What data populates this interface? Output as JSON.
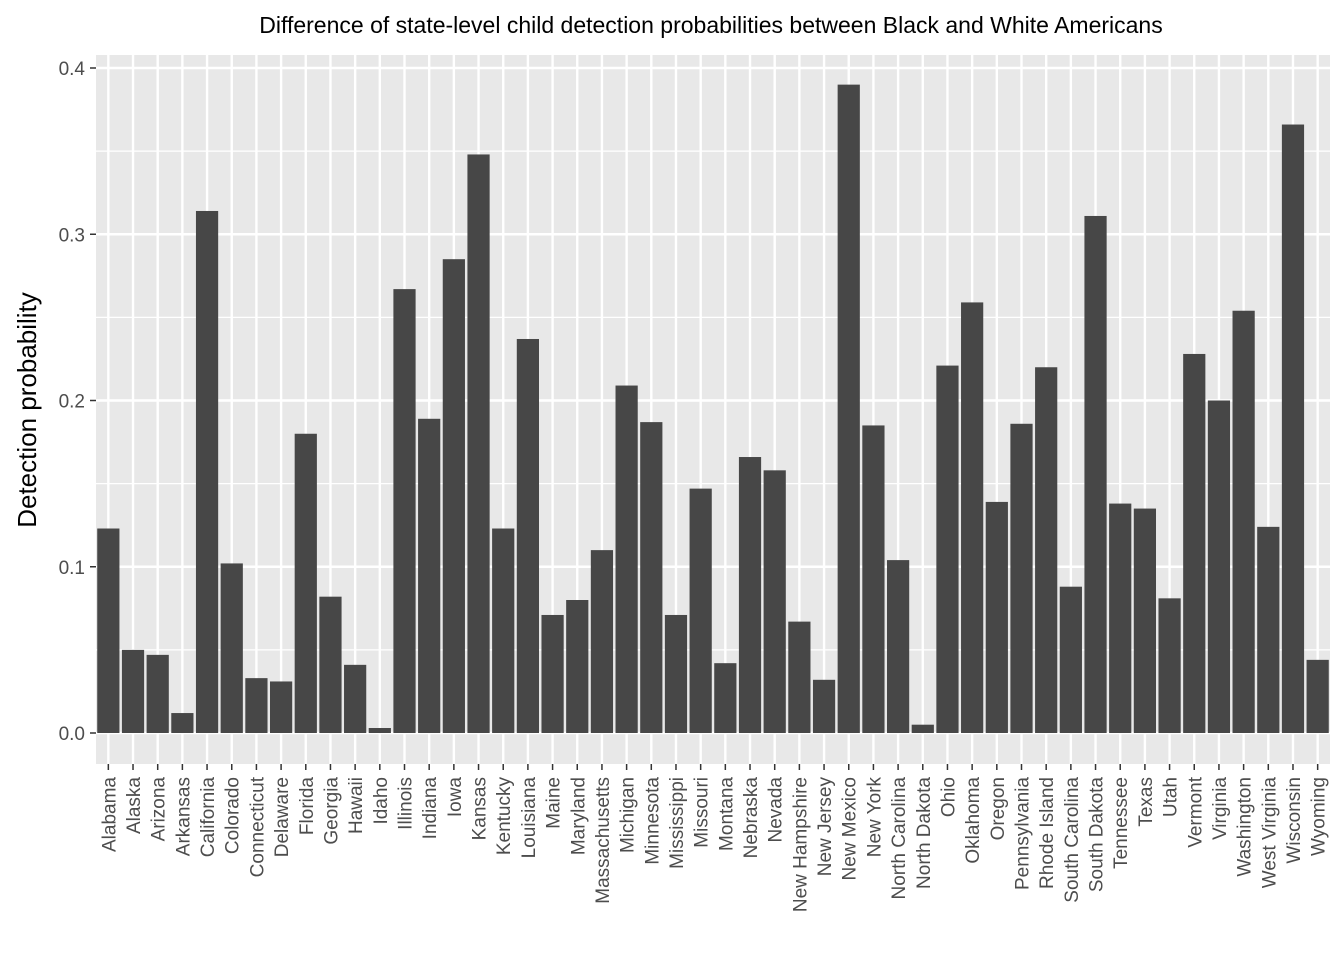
{
  "chart_data": {
    "type": "bar",
    "title": "Difference of state-level child detection probabilities between Black and White Americans",
    "xlabel": "",
    "ylabel": "Detection probability",
    "ylim": [
      -0.018,
      0.41
    ],
    "yticks": [
      "0.0",
      "0.1",
      "0.2",
      "0.3",
      "0.4"
    ],
    "grid": true,
    "legend": "none",
    "colors": {
      "bar": "#474747",
      "panel": "#e8e8e8",
      "grid": "#ffffff"
    },
    "categories": [
      "Alabama",
      "Alaska",
      "Arizona",
      "Arkansas",
      "California",
      "Colorado",
      "Connecticut",
      "Delaware",
      "Florida",
      "Georgia",
      "Hawaii",
      "Idaho",
      "Illinois",
      "Indiana",
      "Iowa",
      "Kansas",
      "Kentucky",
      "Louisiana",
      "Maine",
      "Maryland",
      "Massachusetts",
      "Michigan",
      "Minnesota",
      "Mississippi",
      "Missouri",
      "Montana",
      "Nebraska",
      "Nevada",
      "New Hampshire",
      "New Jersey",
      "New Mexico",
      "New York",
      "North Carolina",
      "North Dakota",
      "Ohio",
      "Oklahoma",
      "Oregon",
      "Pennsylvania",
      "Rhode Island",
      "South Carolina",
      "South Dakota",
      "Tennessee",
      "Texas",
      "Utah",
      "Vermont",
      "Virginia",
      "Washington",
      "West Virginia",
      "Wisconsin",
      "Wyoming"
    ],
    "values": [
      0.123,
      0.05,
      0.047,
      0.012,
      0.314,
      0.102,
      0.033,
      0.031,
      0.18,
      0.082,
      0.041,
      0.003,
      0.267,
      0.189,
      0.285,
      0.348,
      0.123,
      0.237,
      0.071,
      0.08,
      0.11,
      0.209,
      0.187,
      0.071,
      0.147,
      0.042,
      0.166,
      0.158,
      0.067,
      0.032,
      0.39,
      0.185,
      0.104,
      0.005,
      0.221,
      0.259,
      0.139,
      0.186,
      0.22,
      0.088,
      0.311,
      0.138,
      0.135,
      0.081,
      0.228,
      0.2,
      0.254,
      0.124,
      0.366,
      0.044
    ]
  }
}
